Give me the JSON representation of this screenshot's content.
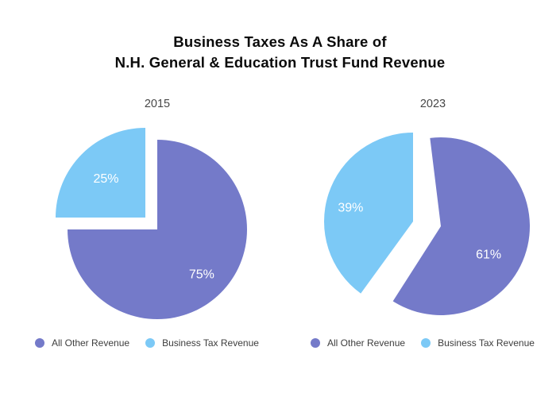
{
  "page": {
    "background": "#ffffff"
  },
  "title": {
    "line1": "Business Taxes As A Share of",
    "line2": "N.H. General & Education Trust Fund Revenue"
  },
  "colors": {
    "all_other_revenue": "#747AC9",
    "business_tax_revenue": "#7CC9F6",
    "title_text": "#0a0a0a",
    "year_text": "#474747",
    "legend_text": "#3d3d3d",
    "pie_value_label_text": "#ffffff"
  },
  "chart_data": [
    {
      "type": "pie",
      "title": "2015",
      "labels": [
        "All Other Revenue",
        "Business Tax Revenue"
      ],
      "values": [
        75,
        25
      ],
      "value_labels": [
        "75%",
        "25%"
      ],
      "colors": [
        "#747AC9",
        "#7CC9F6"
      ],
      "start_angle": "12 o'clock, clockwise",
      "exploded_slice": "Business Tax Revenue",
      "legend_position": "bottom"
    },
    {
      "type": "pie",
      "title": "2023",
      "labels": [
        "All Other Revenue",
        "Business Tax Revenue"
      ],
      "values": [
        61,
        39
      ],
      "value_labels": [
        "61%",
        "39%"
      ],
      "colors": [
        "#747AC9",
        "#7CC9F6"
      ],
      "start_angle": "12 o'clock, clockwise",
      "exploded_slice": "Business Tax Revenue",
      "legend_position": "bottom"
    }
  ]
}
